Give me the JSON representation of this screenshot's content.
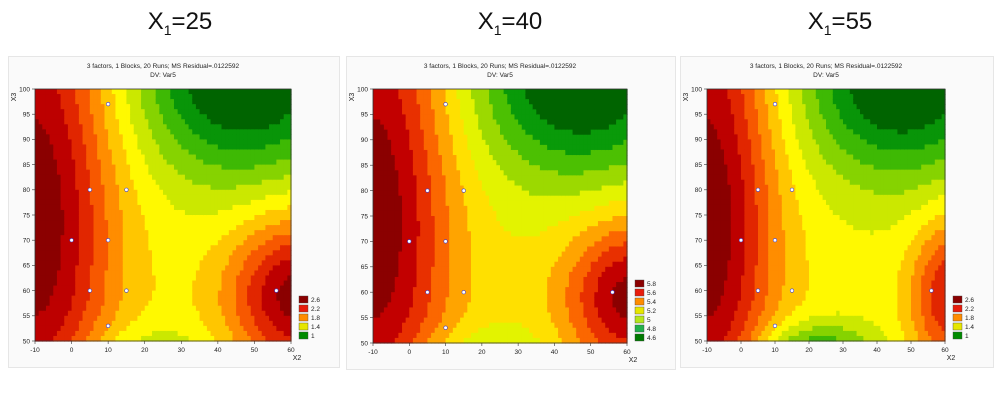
{
  "figure": {
    "panel_titles": [
      {
        "base": "X",
        "sub": "1",
        "value": "=25"
      },
      {
        "base": "X",
        "sub": "1",
        "value": "=40"
      },
      {
        "base": "X",
        "sub": "1",
        "value": "=55"
      }
    ]
  },
  "chart_data": [
    {
      "type": "heatmap",
      "title": "3 factors, 1 Blocks, 20 Runs; MS Residual=.0122592",
      "subtitle": "DV: Var5",
      "xlabel": "X2",
      "ylabel": "X3",
      "xlim": [
        -10,
        60
      ],
      "ylim": [
        50,
        100
      ],
      "x_ticks": [
        "-10",
        "0",
        "10",
        "20",
        "30",
        "40",
        "50",
        "60"
      ],
      "y_ticks": [
        "50",
        "55",
        "60",
        "65",
        "70",
        "75",
        "80",
        "85",
        "90",
        "95",
        "100"
      ],
      "legend": {
        "position": "bottom-right",
        "levels": [
          "2.6",
          "2.2",
          "1.8",
          "1.4",
          "1"
        ],
        "colors": [
          "#8b0000",
          "#e81c0c",
          "#ff8c00",
          "#e6e600",
          "#008a00"
        ]
      },
      "design_points": [
        [
          10,
          97
        ],
        [
          5,
          80
        ],
        [
          15,
          80
        ],
        [
          0,
          70
        ],
        [
          10,
          70
        ],
        [
          5,
          60
        ],
        [
          15,
          60
        ],
        [
          10,
          53
        ],
        [
          56,
          60
        ]
      ],
      "grid": false
    },
    {
      "type": "heatmap",
      "title": "3 factors, 1 Blocks, 20 Runs; MS Residual=.0122592",
      "subtitle": "DV: Var5",
      "xlabel": "X2",
      "ylabel": "X3",
      "xlim": [
        -10,
        60
      ],
      "ylim": [
        50,
        100
      ],
      "x_ticks": [
        "-10",
        "0",
        "10",
        "20",
        "30",
        "40",
        "50",
        "60"
      ],
      "y_ticks": [
        "50",
        "55",
        "60",
        "65",
        "70",
        "75",
        "80",
        "85",
        "90",
        "95",
        "100"
      ],
      "legend": {
        "position": "bottom-right",
        "levels": [
          "5.8",
          "5.6",
          "5.4",
          "5.2",
          "5",
          "4.8",
          "4.6"
        ],
        "colors": [
          "#8b0000",
          "#e81c0c",
          "#ff8c00",
          "#e6e600",
          "#b5e61d",
          "#22b14c",
          "#007a00"
        ]
      },
      "design_points": [
        [
          10,
          97
        ],
        [
          5,
          80
        ],
        [
          15,
          80
        ],
        [
          0,
          70
        ],
        [
          10,
          70
        ],
        [
          5,
          60
        ],
        [
          15,
          60
        ],
        [
          10,
          53
        ],
        [
          56,
          60
        ]
      ],
      "grid": false
    },
    {
      "type": "heatmap",
      "title": "3 factors, 1 Blocks, 20 Runs; MS Residual=.0122592",
      "subtitle": "DV: Var5",
      "xlabel": "X2",
      "ylabel": "X3",
      "xlim": [
        -10,
        60
      ],
      "ylim": [
        50,
        100
      ],
      "x_ticks": [
        "-10",
        "0",
        "10",
        "20",
        "30",
        "40",
        "50",
        "60"
      ],
      "y_ticks": [
        "50",
        "55",
        "60",
        "65",
        "70",
        "75",
        "80",
        "85",
        "90",
        "95",
        "100"
      ],
      "legend": {
        "position": "bottom-right",
        "levels": [
          "2.6",
          "2.2",
          "1.8",
          "1.4",
          "1"
        ],
        "colors": [
          "#8b0000",
          "#e81c0c",
          "#ff8c00",
          "#e6e600",
          "#008a00"
        ]
      },
      "design_points": [
        [
          10,
          97
        ],
        [
          5,
          80
        ],
        [
          15,
          80
        ],
        [
          0,
          70
        ],
        [
          10,
          70
        ],
        [
          5,
          60
        ],
        [
          15,
          60
        ],
        [
          10,
          53
        ],
        [
          56,
          60
        ]
      ],
      "grid": false
    }
  ]
}
